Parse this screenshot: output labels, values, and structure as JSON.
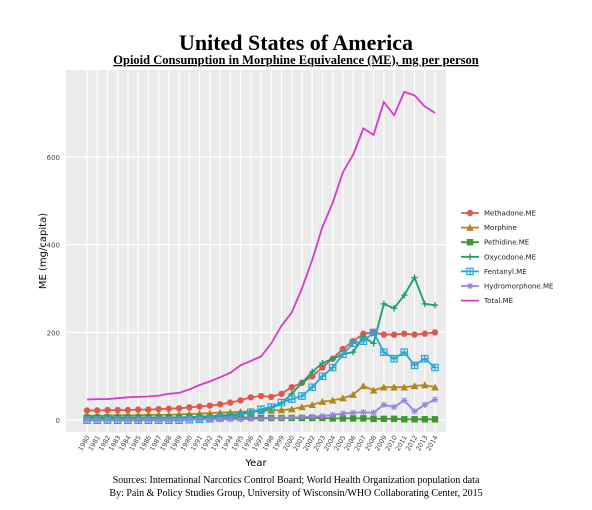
{
  "chart_data": {
    "type": "line",
    "title": "United States of America",
    "subtitle": "Opioid Consumption in Morphine Equivalence (ME), mg per person",
    "x_label": "Year",
    "y_label": "ME (mg/capita)",
    "notes": [
      "Sources: International Narcotics Control Board; World Health Organization population data",
      "By: Pain & Policy Studies Group, University of Wisconsin/WHO Collaborating Center, 2015"
    ],
    "categories": [
      "1980",
      "1981",
      "1982",
      "1983",
      "1984",
      "1985",
      "1986",
      "1987",
      "1988",
      "1989",
      "1990",
      "1991",
      "1992",
      "1993",
      "1994",
      "1995",
      "1996",
      "1997",
      "1998",
      "1999",
      "2000",
      "2001",
      "2002",
      "2003",
      "2004",
      "2005",
      "2006",
      "2007",
      "2008",
      "2009",
      "2010",
      "2011",
      "2012",
      "2013",
      "2014"
    ],
    "ylim": [
      -27,
      798
    ],
    "yticks": [
      0,
      200,
      400,
      600
    ],
    "grid": true,
    "series": [
      {
        "name": "Methadone.ME",
        "color": "#e0584a",
        "marker": "circle",
        "values": [
          22,
          22,
          23,
          23,
          23,
          24,
          24,
          25,
          26,
          27,
          29,
          31,
          33,
          36,
          40,
          45,
          52,
          55,
          53,
          60,
          75,
          85,
          100,
          120,
          140,
          162,
          180,
          197,
          200,
          195,
          195,
          197,
          195,
          197,
          200
        ]
      },
      {
        "name": "Morphine",
        "color": "#b3861a",
        "marker": "triangle",
        "values": [
          10,
          10,
          10,
          11,
          11,
          11,
          12,
          12,
          12,
          13,
          14,
          15,
          16,
          17,
          18,
          19,
          20,
          21,
          22,
          23,
          25,
          30,
          35,
          42,
          45,
          50,
          58,
          78,
          68,
          75,
          75,
          75,
          78,
          80,
          75
        ]
      },
      {
        "name": "Pethidine.ME",
        "color": "#3a9a2a",
        "marker": "square",
        "values": [
          6,
          6,
          6,
          6,
          6,
          6,
          6,
          6,
          6,
          6,
          6,
          6,
          6,
          6,
          6,
          6,
          6,
          5,
          5,
          5,
          5,
          5,
          5,
          5,
          4,
          4,
          4,
          4,
          3,
          3,
          3,
          2,
          2,
          2,
          2
        ]
      },
      {
        "name": "Oxycodone.ME",
        "color": "#1f9e6c",
        "marker": "plus",
        "values": [
          4,
          4,
          4,
          4,
          5,
          5,
          5,
          5,
          6,
          6,
          7,
          8,
          9,
          10,
          12,
          15,
          18,
          22,
          28,
          38,
          60,
          85,
          110,
          130,
          140,
          150,
          155,
          190,
          175,
          265,
          255,
          285,
          325,
          265,
          262
        ]
      },
      {
        "name": "Fentanyl.ME",
        "color": "#28a6d6",
        "marker": "squarecross",
        "values": [
          0,
          0,
          0,
          0,
          0,
          0,
          0,
          0,
          0,
          0,
          1,
          2,
          3,
          5,
          8,
          12,
          18,
          25,
          30,
          40,
          48,
          55,
          75,
          100,
          120,
          150,
          175,
          180,
          200,
          155,
          140,
          155,
          125,
          140,
          120
        ]
      },
      {
        "name": "Hydromorphone.ME",
        "color": "#9b82e0",
        "marker": "star",
        "values": [
          1,
          1,
          1,
          1,
          1,
          1,
          1,
          1,
          1,
          1,
          2,
          2,
          2,
          2,
          2,
          2,
          3,
          3,
          4,
          5,
          6,
          7,
          8,
          9,
          12,
          15,
          17,
          18,
          17,
          35,
          30,
          45,
          20,
          35,
          47
        ]
      },
      {
        "name": "Total.ME",
        "color": "#d43bca",
        "marker": "none",
        "values": [
          47,
          48,
          48,
          50,
          52,
          53,
          54,
          56,
          60,
          62,
          70,
          80,
          88,
          98,
          108,
          125,
          135,
          145,
          175,
          215,
          245,
          300,
          365,
          440,
          495,
          565,
          605,
          665,
          650,
          725,
          695,
          748,
          740,
          715,
          700
        ]
      }
    ]
  }
}
